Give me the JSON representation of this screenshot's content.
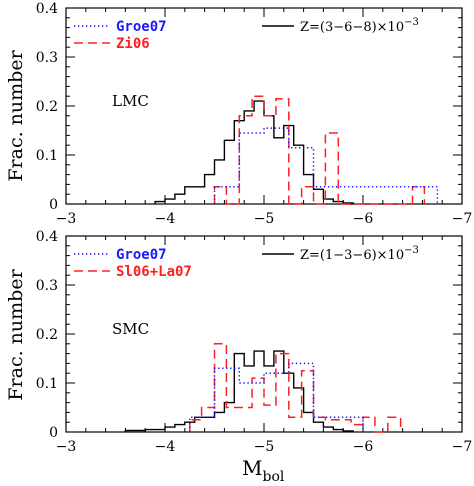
{
  "y_axis_label": "Frac. number",
  "x_axis_label": {
    "main": "M",
    "sub": "bol"
  },
  "chart_data": [
    {
      "type": "histogram",
      "annotation": "LMC",
      "xlim": [
        -3,
        -7
      ],
      "ylim": [
        0,
        0.4
      ],
      "x_ticks": [
        -3,
        -4,
        -5,
        -6,
        -7
      ],
      "y_ticks": [
        0,
        0.1,
        0.2,
        0.3,
        0.4
      ],
      "x_tick_labels": [
        "−3",
        "−4",
        "−5",
        "−6",
        "−7"
      ],
      "y_tick_labels": [
        "0",
        "0.1",
        "0.2",
        "0.3",
        "0.4"
      ],
      "legend": [
        {
          "name": "Groe07",
          "style": "dotted",
          "color": "#1a1aff"
        },
        {
          "name": "Zi06",
          "style": "dashed",
          "color": "#ff2020"
        }
      ],
      "model_label": "Z=(3−6−8)×10",
      "model_label_exp": "−3",
      "series": [
        {
          "name": "Groe07",
          "color": "#1a1aff",
          "style": "dotted",
          "edges": [
            -4.5,
            -4.75,
            -5.0,
            -5.25,
            -5.5,
            -6.0,
            -6.5,
            -6.75
          ],
          "values": [
            0.035,
            0.145,
            0.155,
            0.115,
            0.035,
            0.035,
            0.035
          ]
        },
        {
          "name": "Zi06",
          "color": "#ff2020",
          "style": "dashed",
          "edges": [
            -4.5,
            -4.62,
            -4.75,
            -4.88,
            -5.0,
            -5.12,
            -5.25,
            -5.38,
            -5.5,
            -5.62,
            -5.75,
            -6.38,
            -6.5,
            -6.62
          ],
          "values": [
            0.035,
            0.0,
            0.18,
            0.22,
            0.18,
            0.215,
            0.0,
            0.035,
            0.0,
            0.145,
            0.0,
            0.0,
            0.035
          ]
        },
        {
          "name": "Z=(3−6−8)×10^−3",
          "color": "#000000",
          "style": "solid",
          "edges": [
            -3.9,
            -4.0,
            -4.1,
            -4.2,
            -4.3,
            -4.4,
            -4.5,
            -4.6,
            -4.7,
            -4.8,
            -4.9,
            -5.0,
            -5.1,
            -5.2,
            -5.3,
            -5.4,
            -5.5,
            -5.6,
            -5.7,
            -5.8,
            -5.9
          ],
          "values": [
            0.005,
            0.01,
            0.02,
            0.035,
            0.035,
            0.06,
            0.09,
            0.13,
            0.17,
            0.19,
            0.21,
            0.18,
            0.135,
            0.16,
            0.12,
            0.06,
            0.03,
            0.01,
            0.005,
            0.002
          ]
        }
      ]
    },
    {
      "type": "histogram",
      "annotation": "SMC",
      "xlim": [
        -3,
        -7
      ],
      "ylim": [
        0,
        0.4
      ],
      "x_ticks": [
        -3,
        -4,
        -5,
        -6,
        -7
      ],
      "y_ticks": [
        0,
        0.1,
        0.2,
        0.3,
        0.4
      ],
      "x_tick_labels": [
        "−3",
        "−4",
        "−5",
        "−6",
        "−7"
      ],
      "y_tick_labels": [
        "0",
        "0.1",
        "0.2",
        "0.3",
        "0.4"
      ],
      "legend": [
        {
          "name": "Groe07",
          "style": "dotted",
          "color": "#1a1aff"
        },
        {
          "name": "Sl06+La07",
          "style": "dashed",
          "color": "#ff2020"
        }
      ],
      "model_label": "Z=(1−3−6)×10",
      "model_label_exp": "−3",
      "series": [
        {
          "name": "Groe07",
          "color": "#1a1aff",
          "style": "dotted",
          "edges": [
            -4.25,
            -4.5,
            -4.75,
            -5.0,
            -5.25,
            -5.5,
            -5.75,
            -6.0
          ],
          "values": [
            0.03,
            0.13,
            0.1,
            0.12,
            0.14,
            0.03,
            0.03
          ]
        },
        {
          "name": "Sl06+La07",
          "color": "#ff2020",
          "style": "dashed",
          "edges": [
            -4.25,
            -4.37,
            -4.5,
            -4.62,
            -4.75,
            -4.88,
            -5.0,
            -5.12,
            -5.25,
            -5.38,
            -5.5,
            -5.62,
            -5.75,
            -5.88,
            -6.0,
            -6.12,
            -6.25,
            -6.38
          ],
          "values": [
            0.025,
            0.05,
            0.18,
            0.05,
            0.05,
            0.11,
            0.055,
            0.16,
            0.03,
            0.125,
            0.03,
            0.025,
            0.025,
            0.015,
            0.03,
            0.0,
            0.03
          ]
        },
        {
          "name": "Z=(1−3−6)×10^−3",
          "color": "#000000",
          "style": "solid",
          "edges": [
            -3.6,
            -3.8,
            -4.0,
            -4.1,
            -4.2,
            -4.3,
            -4.4,
            -4.5,
            -4.6,
            -4.7,
            -4.8,
            -4.9,
            -5.0,
            -5.1,
            -5.2,
            -5.3,
            -5.4,
            -5.5,
            -5.6,
            -5.7,
            -5.8,
            -5.9
          ],
          "values": [
            0.003,
            0.005,
            0.01,
            0.015,
            0.02,
            0.03,
            0.03,
            0.04,
            0.06,
            0.16,
            0.135,
            0.165,
            0.135,
            0.165,
            0.12,
            0.09,
            0.04,
            0.02,
            0.01,
            0.005,
            0.002
          ]
        }
      ]
    }
  ]
}
